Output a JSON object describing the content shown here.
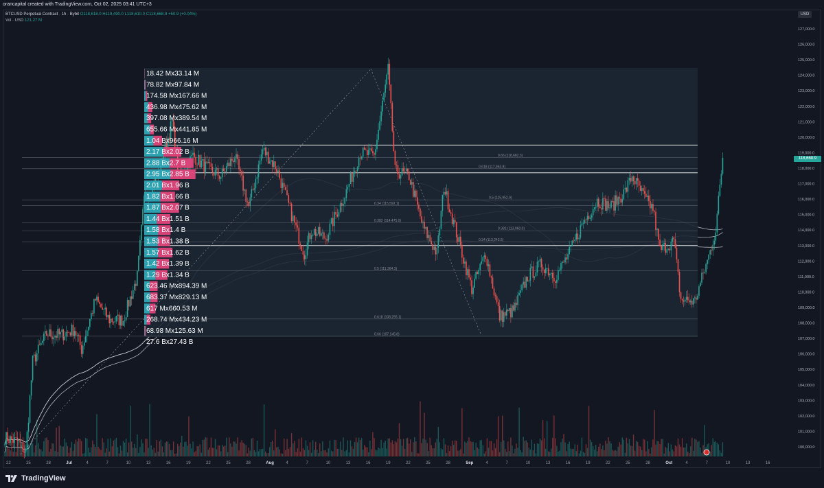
{
  "header": {
    "caption": "orancapital created with TradingView.com, Oct 02, 2025 03:41 UTC+3",
    "symbol_line": "BTCUSD Perpetual Contract · 1h · Bybit",
    "ohlc": "O118,618.0 H119,490.0 L118,610.0 C118,668.9 +50.9 (+0.04%)",
    "volume_label": "Vol · USD",
    "volume_value": "121.27 M"
  },
  "price_axis": {
    "currency": "USD",
    "last_price": "118,668.9",
    "last_color": "#26a69a",
    "ticks": [
      "127,000.0",
      "126,000.0",
      "125,000.0",
      "124,000.0",
      "123,000.0",
      "122,000.0",
      "121,000.0",
      "120,000.0",
      "119,000.0",
      "118,000.0",
      "117,000.0",
      "116,000.0",
      "115,000.0",
      "114,000.0",
      "113,000.0",
      "112,000.0",
      "111,000.0",
      "110,000.0",
      "109,000.0",
      "108,000.0",
      "107,000.0",
      "106,000.0",
      "105,000.0",
      "104,000.0",
      "103,000.0",
      "102,000.0",
      "101,000.0",
      "100,000.0"
    ]
  },
  "time_axis": {
    "labels": [
      "22",
      "25",
      "28",
      "Jul",
      "4",
      "7",
      "10",
      "13",
      "16",
      "19",
      "22",
      "25",
      "28",
      "Aug",
      "4",
      "7",
      "10",
      "13",
      "16",
      "19",
      "22",
      "25",
      "28",
      "Sep",
      "4",
      "7",
      "10",
      "13",
      "16",
      "19",
      "22",
      "25",
      "28",
      "Oct",
      "4",
      "7",
      "10",
      "13",
      "16"
    ],
    "bold_labels": [
      "Jul",
      "Aug",
      "Sep",
      "Oct"
    ]
  },
  "fib_levels": [
    {
      "label": "0.66 (118,682.3)",
      "price": 118682.3
    },
    {
      "label": "0.618 (117,963.8)",
      "price": 117963.8
    },
    {
      "label": "0.5 (115,952.9)",
      "price": 115952.9
    },
    {
      "label": "0.34 (115,592.1)",
      "price": 115592.1
    },
    {
      "label": "0.382 (114,475.0)",
      "price": 114475.0
    },
    {
      "label": "0.382 (113,960.0)",
      "price": 113960.0
    },
    {
      "label": "0.34 (113,243.5)",
      "price": 113243.5
    },
    {
      "label": "0.5 (111,364.3)",
      "price": 111364.3
    },
    {
      "label": "0.618 (108,255.1)",
      "price": 108255.1
    },
    {
      "label": "0.66 (107,145.8)",
      "price": 107145.8
    }
  ],
  "volume_profile": [
    {
      "label": "18.42 Mx33.14 M",
      "buy": 18.42,
      "sell": 33.14
    },
    {
      "label": "78.82 Mx97.84 M",
      "buy": 78.82,
      "sell": 97.84
    },
    {
      "label": "174.58 Mx167.66 M",
      "buy": 174.58,
      "sell": 167.66
    },
    {
      "label": "436.98 Mx475.62 M",
      "buy": 436.98,
      "sell": 475.62
    },
    {
      "label": "397.08 Mx389.54 M",
      "buy": 397.08,
      "sell": 389.54
    },
    {
      "label": "655.66 Mx441.85 M",
      "buy": 655.66,
      "sell": 441.85
    },
    {
      "label": "1.04 Bx966.16 M",
      "buy": 1040,
      "sell": 966.16
    },
    {
      "label": "2.17 Bx2.02 B",
      "buy": 2170,
      "sell": 2020
    },
    {
      "label": "2.88 Bx2.7 B",
      "buy": 2880,
      "sell": 2700
    },
    {
      "label": "2.95 Bx2.85 B",
      "buy": 2950,
      "sell": 2850
    },
    {
      "label": "2.01 Bx1.96 B",
      "buy": 2010,
      "sell": 1960
    },
    {
      "label": "1.82 Bx1.66 B",
      "buy": 1820,
      "sell": 1660
    },
    {
      "label": "1.87 Bx2.07 B",
      "buy": 1870,
      "sell": 2070
    },
    {
      "label": "1.44 Bx1.51 B",
      "buy": 1440,
      "sell": 1510
    },
    {
      "label": "1.58 Bx1.4 B",
      "buy": 1580,
      "sell": 1400
    },
    {
      "label": "1.53 Bx1.38 B",
      "buy": 1530,
      "sell": 1380
    },
    {
      "label": "1.57 Bx1.62 B",
      "buy": 1570,
      "sell": 1620
    },
    {
      "label": "1.42 Bx1.39 B",
      "buy": 1420,
      "sell": 1390
    },
    {
      "label": "1.29 Bx1.34 B",
      "buy": 1290,
      "sell": 1340
    },
    {
      "label": "623.46 Mx894.39 M",
      "buy": 623.46,
      "sell": 894.39
    },
    {
      "label": "683.37 Mx829.13 M",
      "buy": 683.37,
      "sell": 829.13
    },
    {
      "label": "617 Mx660.53 M",
      "buy": 617,
      "sell": 660.53
    },
    {
      "label": "268.74 Mx434.23 M",
      "buy": 268.74,
      "sell": 434.23
    },
    {
      "label": "68.98 Mx125.63 M",
      "buy": 68.98,
      "sell": 125.63
    },
    {
      "label": "27.6 Bx27.43 B",
      "buy": null,
      "sell": null
    }
  ],
  "horizontal_levels": [
    119490,
    117700,
    113000
  ],
  "branding": {
    "name": "TradingView"
  },
  "colors": {
    "background": "#131722",
    "up": "#26a69a",
    "down": "#ef5350",
    "profile_buy": "#2fa8b8",
    "profile_sell": "#e0457b",
    "ma": "#c9ccd4"
  },
  "chart_data": {
    "type": "candlestick",
    "title": "BTCUSD Perpetual Contract · 1h · Bybit",
    "interval": "1h",
    "ylim": [
      100000,
      127500
    ],
    "x_range": [
      "Jun 20",
      "Oct 18"
    ],
    "grid": false,
    "close_path": [
      [
        "Jun 20",
        100600
      ],
      [
        "Jun 22",
        100300
      ],
      [
        "Jun 23",
        99600
      ],
      [
        "Jun 24",
        105500
      ],
      [
        "Jun 26",
        107300
      ],
      [
        "Jun 28",
        107200
      ],
      [
        "Jun 30",
        107600
      ],
      [
        "Jul 1",
        106300
      ],
      [
        "Jul 3",
        109500
      ],
      [
        "Jul 5",
        108200
      ],
      [
        "Jul 7",
        108200
      ],
      [
        "Jul 9",
        111000
      ],
      [
        "Jul 10",
        116000
      ],
      [
        "Jul 12",
        117600
      ],
      [
        "Jul 14",
        121000
      ],
      [
        "Jul 15",
        117500
      ],
      [
        "Jul 17",
        118800
      ],
      [
        "Jul 19",
        118000
      ],
      [
        "Jul 21",
        117500
      ],
      [
        "Jul 23",
        118800
      ],
      [
        "Jul 25",
        115500
      ],
      [
        "Jul 27",
        119200
      ],
      [
        "Jul 29",
        118000
      ],
      [
        "Aug 1",
        113800
      ],
      [
        "Aug 2",
        112500
      ],
      [
        "Aug 3",
        114000
      ],
      [
        "Aug 5",
        113500
      ],
      [
        "Aug 8",
        116500
      ],
      [
        "Aug 10",
        119000
      ],
      [
        "Aug 12",
        118800
      ],
      [
        "Aug 14",
        124400
      ],
      [
        "Aug 15",
        117800
      ],
      [
        "Aug 17",
        117500
      ],
      [
        "Aug 19",
        114200
      ],
      [
        "Aug 21",
        112500
      ],
      [
        "Aug 22",
        116800
      ],
      [
        "Aug 24",
        113500
      ],
      [
        "Aug 26",
        110200
      ],
      [
        "Aug 28",
        112500
      ],
      [
        "Aug 30",
        108400
      ],
      [
        "Sep 1",
        108800
      ],
      [
        "Sep 3",
        111000
      ],
      [
        "Sep 5",
        111800
      ],
      [
        "Sep 7",
        111000
      ],
      [
        "Sep 9",
        112500
      ],
      [
        "Sep 11",
        114500
      ],
      [
        "Sep 13",
        115900
      ],
      [
        "Sep 15",
        115500
      ],
      [
        "Sep 17",
        116500
      ],
      [
        "Sep 18",
        117500
      ],
      [
        "Sep 20",
        115900
      ],
      [
        "Sep 21",
        115400
      ],
      [
        "Sep 22",
        112700
      ],
      [
        "Sep 24",
        113300
      ],
      [
        "Sep 25",
        109500
      ],
      [
        "Sep 27",
        109400
      ],
      [
        "Sep 29",
        112300
      ],
      [
        "Sep 30",
        114000
      ],
      [
        "Oct 1",
        118669
      ]
    ],
    "volume": {
      "unit": "USD",
      "last": "121.27 M"
    }
  }
}
